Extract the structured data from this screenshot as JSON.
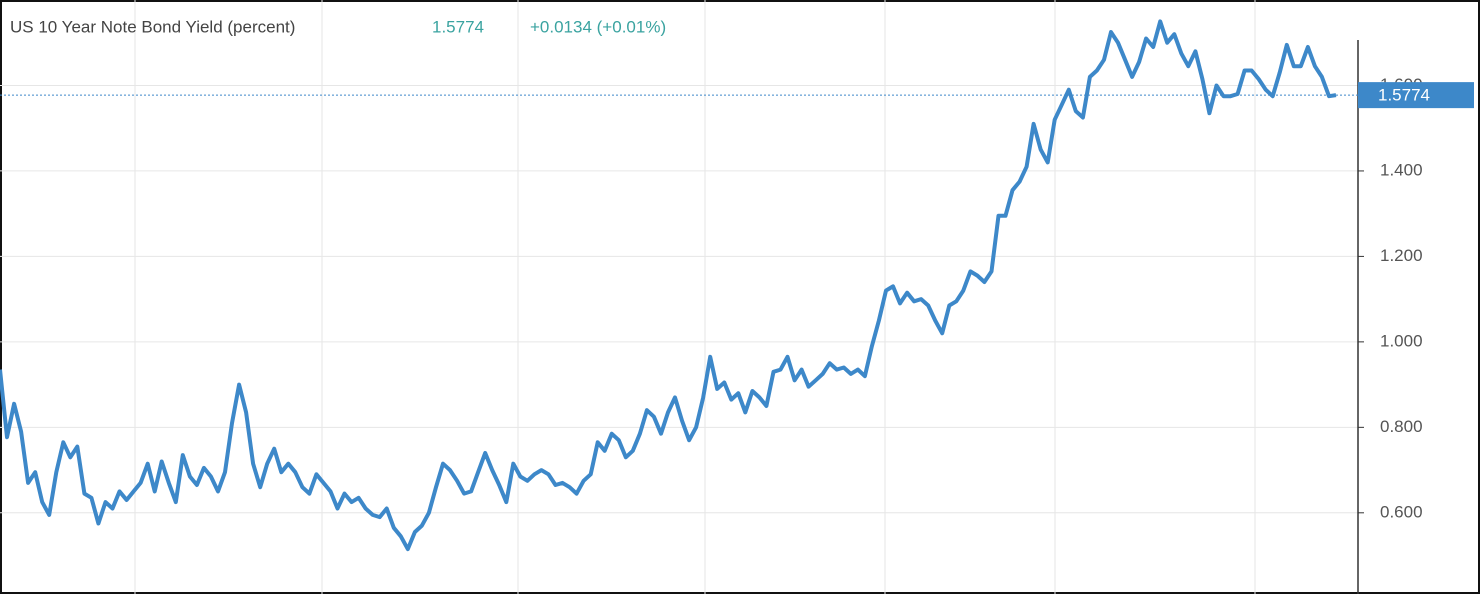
{
  "chart_data": {
    "type": "line",
    "title": "US 10 Year Note Bond Yield (percent)",
    "last_value": 1.5774,
    "change": "+0.0134 (+0.01%)",
    "color": "#3d88c9",
    "grid": true,
    "ylim": [
      0.41,
      1.8
    ],
    "yticks": [
      {
        "value": 0.6,
        "label": "0.600"
      },
      {
        "value": 0.8,
        "label": "0.800"
      },
      {
        "value": 1.0,
        "label": "1.000"
      },
      {
        "value": 1.2,
        "label": "1.200"
      },
      {
        "value": 1.4,
        "label": "1.400"
      },
      {
        "value": 1.6,
        "label": "1.600"
      }
    ],
    "values": [
      0.935,
      0.777,
      0.855,
      0.79,
      0.67,
      0.695,
      0.625,
      0.595,
      0.695,
      0.765,
      0.73,
      0.755,
      0.645,
      0.635,
      0.575,
      0.625,
      0.61,
      0.65,
      0.63,
      0.65,
      0.67,
      0.715,
      0.65,
      0.72,
      0.67,
      0.625,
      0.735,
      0.685,
      0.665,
      0.705,
      0.685,
      0.65,
      0.695,
      0.81,
      0.9,
      0.835,
      0.715,
      0.66,
      0.715,
      0.75,
      0.695,
      0.715,
      0.695,
      0.66,
      0.645,
      0.69,
      0.67,
      0.65,
      0.61,
      0.645,
      0.625,
      0.635,
      0.61,
      0.595,
      0.59,
      0.61,
      0.565,
      0.545,
      0.515,
      0.555,
      0.57,
      0.6,
      0.66,
      0.715,
      0.7,
      0.675,
      0.645,
      0.65,
      0.695,
      0.74,
      0.7,
      0.665,
      0.625,
      0.715,
      0.685,
      0.675,
      0.69,
      0.7,
      0.69,
      0.665,
      0.67,
      0.66,
      0.645,
      0.675,
      0.69,
      0.765,
      0.745,
      0.785,
      0.77,
      0.73,
      0.745,
      0.785,
      0.84,
      0.825,
      0.785,
      0.835,
      0.87,
      0.815,
      0.77,
      0.8,
      0.87,
      0.965,
      0.89,
      0.905,
      0.865,
      0.88,
      0.835,
      0.885,
      0.87,
      0.85,
      0.93,
      0.935,
      0.965,
      0.91,
      0.935,
      0.895,
      0.91,
      0.925,
      0.95,
      0.935,
      0.94,
      0.925,
      0.935,
      0.92,
      0.99,
      1.05,
      1.12,
      1.13,
      1.09,
      1.115,
      1.095,
      1.1,
      1.085,
      1.05,
      1.02,
      1.085,
      1.095,
      1.12,
      1.165,
      1.155,
      1.14,
      1.165,
      1.295,
      1.295,
      1.355,
      1.375,
      1.41,
      1.51,
      1.45,
      1.42,
      1.52,
      1.555,
      1.59,
      1.54,
      1.525,
      1.62,
      1.635,
      1.66,
      1.725,
      1.7,
      1.66,
      1.62,
      1.655,
      1.71,
      1.69,
      1.75,
      1.7,
      1.72,
      1.675,
      1.645,
      1.68,
      1.615,
      1.535,
      1.6,
      1.575,
      1.575,
      1.58,
      1.635,
      1.635,
      1.615,
      1.59,
      1.575,
      1.63,
      1.695,
      1.645,
      1.645,
      1.69,
      1.645,
      1.62,
      1.575,
      1.5774
    ]
  }
}
